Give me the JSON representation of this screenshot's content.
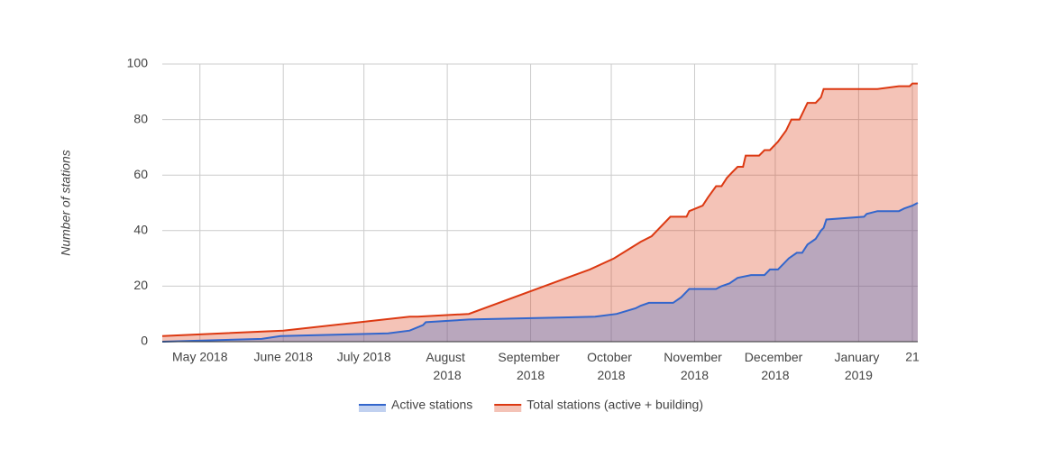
{
  "chart_data": {
    "type": "area",
    "y_label": "Number of stations",
    "xlim": [
      "2018-04-17",
      "2019-01-23"
    ],
    "xticks": [
      {
        "value": "2018-05-01",
        "label": "May 2018"
      },
      {
        "value": "2018-06-01",
        "label": "June 2018"
      },
      {
        "value": "2018-07-01",
        "label": "July 2018"
      },
      {
        "value": "2018-08-01",
        "label": "August 2018"
      },
      {
        "value": "2018-09-01",
        "label": "September 2018"
      },
      {
        "value": "2018-10-01",
        "label": "October 2018"
      },
      {
        "value": "2018-11-01",
        "label": "November 2018"
      },
      {
        "value": "2018-12-01",
        "label": "December 2018"
      },
      {
        "value": "2019-01-01",
        "label": "January 2019"
      },
      {
        "value": "2019-01-21",
        "label": "21"
      }
    ],
    "ylim": [
      0,
      100
    ],
    "yticks": [
      0,
      20,
      40,
      60,
      80,
      100
    ],
    "grid": true,
    "legend": "bottom",
    "series": [
      {
        "name": "Total stations (active + building)",
        "color": "#dc3912",
        "x": [
          "2018-04-17",
          "2018-06-01",
          "2018-07-18",
          "2018-07-21",
          "2018-08-09",
          "2018-09-23",
          "2018-10-02",
          "2018-10-12",
          "2018-10-16",
          "2018-10-23",
          "2018-10-29",
          "2018-10-30",
          "2018-11-04",
          "2018-11-06",
          "2018-11-09",
          "2018-11-11",
          "2018-11-13",
          "2018-11-15",
          "2018-11-17",
          "2018-11-19",
          "2018-11-20",
          "2018-11-25",
          "2018-11-27",
          "2018-11-29",
          "2018-12-02",
          "2018-12-05",
          "2018-12-07",
          "2018-12-10",
          "2018-12-13",
          "2018-12-16",
          "2018-12-18",
          "2018-12-19",
          "2019-01-08",
          "2019-01-16",
          "2019-01-20",
          "2019-01-21",
          "2019-01-23"
        ],
        "values": [
          2,
          4,
          9,
          9,
          10,
          26,
          30,
          36,
          38,
          45,
          45,
          47,
          49,
          52,
          56,
          56,
          59,
          61,
          63,
          63,
          67,
          67,
          69,
          69,
          72,
          76,
          80,
          80,
          86,
          86,
          88,
          91,
          91,
          92,
          92,
          93,
          93
        ]
      },
      {
        "name": "Active stations",
        "color": "#3366cc",
        "x": [
          "2018-04-17",
          "2018-05-24",
          "2018-05-31",
          "2018-07-10",
          "2018-07-18",
          "2018-07-23",
          "2018-07-24",
          "2018-08-09",
          "2018-09-25",
          "2018-10-03",
          "2018-10-10",
          "2018-10-12",
          "2018-10-15",
          "2018-10-24",
          "2018-10-27",
          "2018-10-30",
          "2018-11-09",
          "2018-11-11",
          "2018-11-14",
          "2018-11-17",
          "2018-11-22",
          "2018-11-27",
          "2018-11-29",
          "2018-12-02",
          "2018-12-04",
          "2018-12-06",
          "2018-12-09",
          "2018-12-11",
          "2018-12-13",
          "2018-12-16",
          "2018-12-18",
          "2018-12-19",
          "2018-12-20",
          "2019-01-03",
          "2019-01-04",
          "2019-01-08",
          "2019-01-16",
          "2019-01-18",
          "2019-01-21",
          "2019-01-23"
        ],
        "values": [
          0,
          1,
          2,
          3,
          4,
          6,
          7,
          8,
          9,
          10,
          12,
          13,
          14,
          14,
          16,
          19,
          19,
          20,
          21,
          23,
          24,
          24,
          26,
          26,
          28,
          30,
          32,
          32,
          35,
          37,
          40,
          41,
          44,
          45,
          46,
          47,
          47,
          48,
          49,
          50
        ]
      }
    ]
  }
}
